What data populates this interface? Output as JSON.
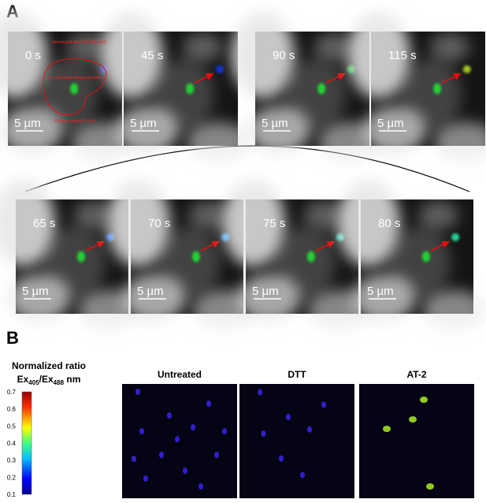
{
  "panel_a": {
    "label": "A",
    "top_frames": [
      {
        "time": "0 s",
        "scale": "5 µm"
      },
      {
        "time": "45 s",
        "scale": "5 µm"
      },
      {
        "time": "90 s",
        "scale": "5 µm"
      },
      {
        "time": "115 s",
        "scale": "5 µm"
      }
    ],
    "annotations": {
      "cell": "Neutrophil-like PLB-985 cell",
      "being": "E. coli being phagocytosed",
      "phago": "Phagocytosed E. coli"
    },
    "bottom_frames": [
      {
        "time": "65 s",
        "scale": "5 µm"
      },
      {
        "time": "70 s",
        "scale": "5 µm"
      },
      {
        "time": "75 s",
        "scale": "5 µm"
      },
      {
        "time": "80 s",
        "scale": "5 µm"
      }
    ]
  },
  "panel_b": {
    "label": "B",
    "colorbar_title": "Normalized ratio",
    "colorbar_unit": [
      "Ex",
      "405",
      "/Ex",
      "488",
      " nm"
    ],
    "colorbar_ticks": [
      0.1,
      0.2,
      0.3,
      0.4,
      0.5,
      0.6,
      0.7
    ],
    "conditions": [
      "Untreated",
      "DTT",
      "AT-2"
    ]
  }
}
